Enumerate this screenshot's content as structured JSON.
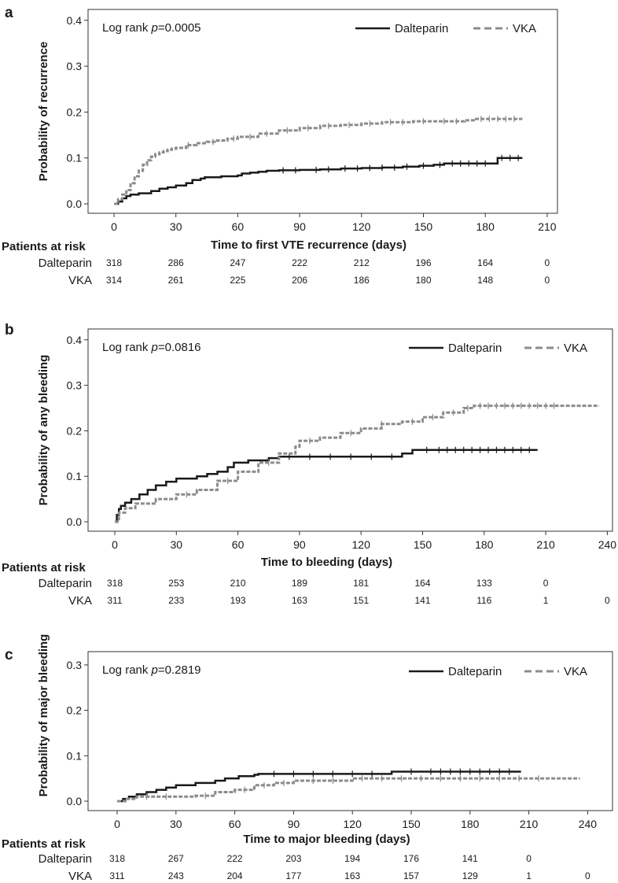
{
  "chart_data": [
    {
      "panel_label": "a",
      "type": "line",
      "subtype": "kaplan-meier",
      "title": "",
      "xlabel": "Time to first VTE recurrence (days)",
      "ylabel": "Probability of recurrence",
      "xlim": [
        -5,
        212
      ],
      "ylim": [
        -0.01,
        0.41
      ],
      "xticks": [
        "0",
        "30",
        "60",
        "90",
        "120",
        "150",
        "180",
        "210"
      ],
      "yticks": [
        "0.0",
        "0.1",
        "0.2",
        "0.3",
        "0.4"
      ],
      "annotation": {
        "prefix": "Log rank ",
        "p_symbol": "p",
        "p_value": "=0.0005"
      },
      "legend": "top-right",
      "series": [
        {
          "name": "Dalteparin",
          "style": "solid",
          "color": "#1a1a1a",
          "x": [
            0,
            2,
            4,
            6,
            8,
            12,
            18,
            22,
            26,
            30,
            35,
            38,
            42,
            44,
            52,
            60,
            62,
            66,
            70,
            74,
            80,
            90,
            100,
            110,
            120,
            130,
            140,
            148,
            155,
            160,
            186,
            198
          ],
          "y": [
            0,
            0.005,
            0.012,
            0.017,
            0.02,
            0.023,
            0.028,
            0.033,
            0.036,
            0.04,
            0.045,
            0.052,
            0.055,
            0.058,
            0.06,
            0.062,
            0.066,
            0.068,
            0.07,
            0.072,
            0.073,
            0.074,
            0.075,
            0.077,
            0.078,
            0.079,
            0.081,
            0.083,
            0.085,
            0.088,
            0.1,
            0.1
          ],
          "censor_x": [
            82,
            88,
            98,
            104,
            112,
            118,
            124,
            130,
            136,
            142,
            150,
            158,
            164,
            168,
            172,
            176,
            180,
            188,
            192,
            196
          ]
        },
        {
          "name": "VKA",
          "style": "dashed",
          "color": "#8c8c8c",
          "x": [
            0,
            2,
            4,
            6,
            8,
            10,
            12,
            14,
            16,
            18,
            20,
            22,
            24,
            26,
            28,
            30,
            35,
            40,
            45,
            50,
            55,
            60,
            70,
            80,
            90,
            100,
            110,
            120,
            130,
            145,
            170,
            175,
            198
          ],
          "y": [
            0,
            0.01,
            0.02,
            0.03,
            0.045,
            0.06,
            0.072,
            0.085,
            0.095,
            0.103,
            0.108,
            0.112,
            0.115,
            0.118,
            0.12,
            0.122,
            0.128,
            0.132,
            0.135,
            0.138,
            0.142,
            0.146,
            0.153,
            0.16,
            0.165,
            0.17,
            0.172,
            0.175,
            0.178,
            0.18,
            0.182,
            0.185,
            0.185
          ],
          "censor_x": [
            36,
            48,
            58,
            66,
            74,
            84,
            94,
            104,
            114,
            124,
            134,
            140,
            150,
            160,
            166,
            178,
            182,
            186,
            190,
            194
          ]
        }
      ],
      "risk_table": {
        "header": "Patients at risk",
        "rows": [
          {
            "label": "Dalteparin",
            "values": [
              "318",
              "286",
              "247",
              "222",
              "212",
              "196",
              "164",
              "0"
            ]
          },
          {
            "label": "VKA",
            "values": [
              "314",
              "261",
              "225",
              "206",
              "186",
              "180",
              "148",
              "0"
            ]
          }
        ]
      }
    },
    {
      "panel_label": "b",
      "type": "line",
      "subtype": "kaplan-meier",
      "title": "",
      "xlabel": "Time to bleeding (days)",
      "ylabel": "Probability of any bleeding",
      "xlim": [
        -5,
        242
      ],
      "ylim": [
        -0.01,
        0.41
      ],
      "xticks": [
        "0",
        "30",
        "60",
        "90",
        "120",
        "150",
        "180",
        "210",
        "240"
      ],
      "yticks": [
        "0.0",
        "0.1",
        "0.2",
        "0.3",
        "0.4"
      ],
      "annotation": {
        "prefix": "Log rank ",
        "p_symbol": "p",
        "p_value": "=0.0816"
      },
      "legend": "top-right",
      "series": [
        {
          "name": "Dalteparin",
          "style": "solid",
          "color": "#1a1a1a",
          "x": [
            0,
            1,
            2,
            3,
            5,
            8,
            12,
            16,
            20,
            25,
            30,
            40,
            45,
            50,
            55,
            58,
            65,
            75,
            80,
            90,
            100,
            120,
            140,
            145,
            150,
            160,
            180,
            206
          ],
          "y": [
            0,
            0.015,
            0.028,
            0.035,
            0.042,
            0.05,
            0.06,
            0.07,
            0.08,
            0.088,
            0.095,
            0.1,
            0.105,
            0.11,
            0.12,
            0.13,
            0.135,
            0.14,
            0.143,
            0.143,
            0.143,
            0.143,
            0.15,
            0.158,
            0.158,
            0.158,
            0.158,
            0.158
          ],
          "censor_x": [
            85,
            95,
            105,
            115,
            125,
            135,
            152,
            158,
            162,
            166,
            170,
            174,
            178,
            182,
            186,
            190,
            194,
            198,
            202
          ]
        },
        {
          "name": "VKA",
          "style": "dashed",
          "color": "#8c8c8c",
          "x": [
            0,
            2,
            5,
            10,
            20,
            30,
            40,
            50,
            60,
            70,
            80,
            88,
            90,
            100,
            110,
            120,
            130,
            140,
            150,
            160,
            170,
            175,
            236
          ],
          "y": [
            0,
            0.02,
            0.03,
            0.04,
            0.05,
            0.06,
            0.07,
            0.09,
            0.11,
            0.13,
            0.15,
            0.165,
            0.178,
            0.185,
            0.195,
            0.205,
            0.215,
            0.22,
            0.23,
            0.24,
            0.25,
            0.255,
            0.255
          ],
          "censor_x": [
            35,
            55,
            75,
            95,
            115,
            130,
            145,
            155,
            165,
            172,
            178,
            182,
            186,
            190,
            194,
            198,
            202,
            206,
            210,
            214
          ]
        }
      ],
      "risk_table": {
        "header": "Patients at risk",
        "rows": [
          {
            "label": "Dalteparin",
            "values": [
              "318",
              "253",
              "210",
              "189",
              "181",
              "164",
              "133",
              "0"
            ]
          },
          {
            "label": "VKA",
            "values": [
              "311",
              "233",
              "193",
              "163",
              "151",
              "141",
              "116",
              "1",
              "0"
            ]
          }
        ]
      }
    },
    {
      "panel_label": "c",
      "type": "line",
      "subtype": "kaplan-meier",
      "title": "",
      "xlabel": "Time to major bleeding (days)",
      "ylabel": "Probability of major bleeding",
      "xlim": [
        -5,
        242
      ],
      "ylim": [
        -0.01,
        0.31
      ],
      "xticks": [
        "0",
        "30",
        "60",
        "90",
        "120",
        "150",
        "180",
        "210",
        "240"
      ],
      "yticks": [
        "0.0",
        "0.1",
        "0.2",
        "0.3"
      ],
      "annotation": {
        "prefix": "Log rank ",
        "p_symbol": "p",
        "p_value": "=0.2819"
      },
      "legend": "top-right",
      "series": [
        {
          "name": "Dalteparin",
          "style": "solid",
          "color": "#1a1a1a",
          "x": [
            0,
            3,
            6,
            10,
            15,
            20,
            25,
            30,
            40,
            50,
            55,
            62,
            70,
            72,
            90,
            110,
            140,
            206
          ],
          "y": [
            0,
            0.005,
            0.01,
            0.015,
            0.02,
            0.025,
            0.03,
            0.035,
            0.04,
            0.045,
            0.05,
            0.055,
            0.058,
            0.06,
            0.06,
            0.06,
            0.065,
            0.065
          ],
          "censor_x": [
            80,
            90,
            100,
            110,
            120,
            130,
            150,
            160,
            165,
            170,
            175,
            180,
            185,
            190,
            195,
            200
          ]
        },
        {
          "name": "VKA",
          "style": "dashed",
          "color": "#8c8c8c",
          "x": [
            0,
            5,
            10,
            20,
            40,
            50,
            60,
            70,
            80,
            90,
            95,
            120,
            236
          ],
          "y": [
            0,
            0.005,
            0.01,
            0.01,
            0.012,
            0.02,
            0.025,
            0.035,
            0.04,
            0.045,
            0.045,
            0.05,
            0.05
          ],
          "censor_x": [
            15,
            25,
            45,
            65,
            75,
            85,
            100,
            110,
            125,
            135,
            145,
            155,
            165,
            175,
            185,
            195,
            205,
            215
          ]
        }
      ],
      "risk_table": {
        "header": "Patients at risk",
        "rows": [
          {
            "label": "Dalteparin",
            "values": [
              "318",
              "267",
              "222",
              "203",
              "194",
              "176",
              "141",
              "0"
            ]
          },
          {
            "label": "VKA",
            "values": [
              "311",
              "243",
              "204",
              "177",
              "163",
              "157",
              "129",
              "1",
              "0"
            ]
          }
        ]
      }
    }
  ]
}
